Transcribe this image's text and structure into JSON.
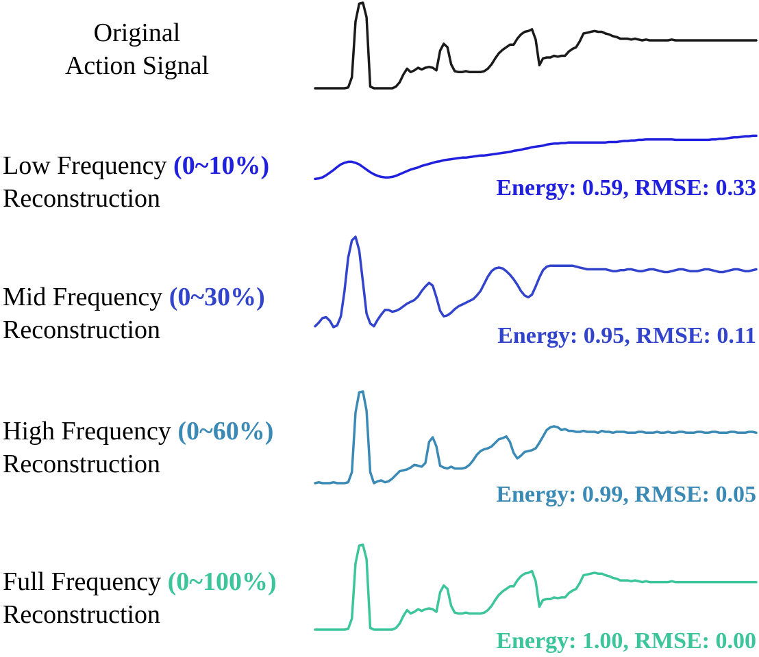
{
  "chart_data": {
    "type": "line",
    "x": [
      0,
      1,
      2,
      3,
      4,
      5,
      6,
      7,
      8,
      9,
      10,
      11,
      12,
      13,
      14,
      15,
      16,
      17,
      18,
      19,
      20,
      21,
      22,
      23,
      24,
      25,
      26,
      27,
      28,
      29,
      30,
      31,
      32,
      33,
      34,
      35,
      36,
      37,
      38,
      39,
      40,
      41,
      42,
      43,
      44,
      45,
      46,
      47,
      48,
      49,
      50,
      51,
      52,
      53,
      54,
      55,
      56,
      57,
      58,
      59,
      60,
      61,
      62,
      63,
      64,
      65,
      66,
      67,
      68,
      69,
      70,
      71,
      72,
      73,
      74,
      75,
      76,
      77,
      78,
      79,
      80,
      81,
      82,
      83,
      84,
      85,
      86,
      87,
      88,
      89,
      90,
      91,
      92,
      93,
      94,
      95,
      96,
      97,
      98,
      99,
      100,
      101,
      102,
      103,
      104,
      105,
      106,
      107,
      108,
      109,
      110,
      111,
      112,
      113,
      114,
      115,
      116,
      117,
      118,
      119,
      120
    ],
    "series": [
      {
        "name": "",
        "color": "#1a1a1a",
        "values": [
          0,
          0,
          0,
          0,
          0,
          0,
          0,
          0,
          0,
          0.01,
          0.13,
          0.78,
          0.99,
          1,
          0.83,
          0.02,
          0,
          0,
          0,
          0,
          0,
          0,
          0.02,
          0.07,
          0.16,
          0.23,
          0.19,
          0.21,
          0.24,
          0.22,
          0.24,
          0.25,
          0.24,
          0.21,
          0.44,
          0.52,
          0.48,
          0.28,
          0.2,
          0.19,
          0.19,
          0.2,
          0.19,
          0.19,
          0.19,
          0.19,
          0.2,
          0.23,
          0.28,
          0.35,
          0.41,
          0.45,
          0.48,
          0.51,
          0.51,
          0.58,
          0.63,
          0.66,
          0.67,
          0.69,
          0.57,
          0.27,
          0.35,
          0.36,
          0.36,
          0.38,
          0.37,
          0.38,
          0.38,
          0.43,
          0.46,
          0.48,
          0.55,
          0.64,
          0.65,
          0.66,
          0.67,
          0.66,
          0.66,
          0.64,
          0.63,
          0.61,
          0.6,
          0.58,
          0.58,
          0.58,
          0.57,
          0.58,
          0.57,
          0.56,
          0.57,
          0.56,
          0.56,
          0.56,
          0.56,
          0.56,
          0.56,
          0.57,
          0.56,
          0.56,
          0.56,
          0.56,
          0.56,
          0.56,
          0.56,
          0.56,
          0.56,
          0.56,
          0.56,
          0.56,
          0.56,
          0.56,
          0.56,
          0.56,
          0.56,
          0.56,
          0.56,
          0.56,
          0.56,
          0.56,
          0.56
        ]
      },
      {
        "name": "Low Frequency (0~10%) Reconstruction",
        "color": "#2020dd",
        "values": [
          0.06,
          0.07,
          0.09,
          0.13,
          0.18,
          0.23,
          0.29,
          0.34,
          0.37,
          0.39,
          0.39,
          0.37,
          0.34,
          0.29,
          0.24,
          0.19,
          0.15,
          0.12,
          0.1,
          0.09,
          0.09,
          0.1,
          0.12,
          0.15,
          0.18,
          0.21,
          0.24,
          0.26,
          0.28,
          0.31,
          0.33,
          0.35,
          0.37,
          0.39,
          0.4,
          0.42,
          0.43,
          0.44,
          0.45,
          0.46,
          0.47,
          0.47,
          0.48,
          0.49,
          0.5,
          0.51,
          0.51,
          0.52,
          0.53,
          0.54,
          0.55,
          0.56,
          0.57,
          0.58,
          0.6,
          0.61,
          0.62,
          0.64,
          0.65,
          0.67,
          0.68,
          0.69,
          0.7,
          0.72,
          0.73,
          0.74,
          0.74,
          0.75,
          0.75,
          0.76,
          0.76,
          0.76,
          0.76,
          0.76,
          0.76,
          0.76,
          0.76,
          0.76,
          0.76,
          0.76,
          0.77,
          0.77,
          0.77,
          0.78,
          0.79,
          0.79,
          0.8,
          0.8,
          0.81,
          0.81,
          0.82,
          0.82,
          0.82,
          0.82,
          0.82,
          0.82,
          0.82,
          0.82,
          0.81,
          0.81,
          0.81,
          0.81,
          0.81,
          0.81,
          0.81,
          0.81,
          0.81,
          0.81,
          0.82,
          0.82,
          0.83,
          0.83,
          0.84,
          0.85,
          0.86,
          0.86,
          0.87,
          0.88,
          0.88,
          0.89,
          0.89
        ]
      },
      {
        "name": "Mid Frequency (0~30%) Reconstruction",
        "color": "#3344cc",
        "values": [
          0.01,
          0.05,
          0.1,
          0.11,
          0.07,
          0,
          0.02,
          0.12,
          0.4,
          0.77,
          0.96,
          1,
          0.85,
          0.5,
          0.15,
          0.04,
          0.01,
          0.08,
          0.14,
          0.19,
          0.19,
          0.17,
          0.18,
          0.2,
          0.23,
          0.26,
          0.28,
          0.3,
          0.34,
          0.4,
          0.45,
          0.49,
          0.46,
          0.33,
          0.18,
          0.12,
          0.13,
          0.16,
          0.2,
          0.23,
          0.25,
          0.27,
          0.29,
          0.31,
          0.35,
          0.4,
          0.48,
          0.56,
          0.62,
          0.65,
          0.66,
          0.65,
          0.62,
          0.58,
          0.53,
          0.47,
          0.4,
          0.35,
          0.33,
          0.36,
          0.45,
          0.55,
          0.63,
          0.67,
          0.68,
          0.68,
          0.68,
          0.68,
          0.68,
          0.68,
          0.68,
          0.67,
          0.66,
          0.65,
          0.64,
          0.64,
          0.64,
          0.64,
          0.64,
          0.64,
          0.63,
          0.62,
          0.62,
          0.63,
          0.63,
          0.64,
          0.64,
          0.63,
          0.62,
          0.62,
          0.63,
          0.64,
          0.64,
          0.63,
          0.62,
          0.61,
          0.61,
          0.62,
          0.63,
          0.64,
          0.64,
          0.63,
          0.62,
          0.62,
          0.62,
          0.63,
          0.64,
          0.64,
          0.63,
          0.62,
          0.61,
          0.61,
          0.62,
          0.63,
          0.64,
          0.64,
          0.63,
          0.62,
          0.62,
          0.63,
          0.64
        ]
      },
      {
        "name": "High Frequency (0~60%) Reconstruction",
        "color": "#3b8ab5",
        "values": [
          0,
          0.01,
          0,
          0,
          0,
          0.01,
          0,
          0,
          0,
          0.01,
          0.12,
          0.77,
          0.99,
          1,
          0.79,
          0.12,
          0,
          0.02,
          0.03,
          0.01,
          0.02,
          0.05,
          0.09,
          0.13,
          0.14,
          0.15,
          0.17,
          0.2,
          0.19,
          0.18,
          0.22,
          0.45,
          0.5,
          0.4,
          0.19,
          0.17,
          0.16,
          0.18,
          0.16,
          0.16,
          0.16,
          0.17,
          0.2,
          0.25,
          0.31,
          0.35,
          0.37,
          0.38,
          0.4,
          0.44,
          0.48,
          0.49,
          0.51,
          0.45,
          0.33,
          0.27,
          0.3,
          0.34,
          0.35,
          0.36,
          0.38,
          0.44,
          0.51,
          0.58,
          0.61,
          0.62,
          0.61,
          0.58,
          0.59,
          0.57,
          0.57,
          0.56,
          0.56,
          0.57,
          0.56,
          0.56,
          0.56,
          0.55,
          0.57,
          0.56,
          0.56,
          0.55,
          0.56,
          0.56,
          0.56,
          0.55,
          0.55,
          0.55,
          0.56,
          0.56,
          0.55,
          0.55,
          0.55,
          0.56,
          0.55,
          0.55,
          0.56,
          0.55,
          0.55,
          0.56,
          0.56,
          0.55,
          0.55,
          0.55,
          0.56,
          0.56,
          0.55,
          0.55,
          0.56,
          0.56,
          0.55,
          0.55,
          0.55,
          0.56,
          0.56,
          0.55,
          0.55,
          0.55,
          0.56,
          0.56,
          0.55
        ]
      },
      {
        "name": "Full Frequency (0~100%) Reconstruction",
        "color": "#3cc59a",
        "values": [
          0,
          0,
          0,
          0,
          0,
          0,
          0,
          0,
          0,
          0.01,
          0.13,
          0.78,
          0.99,
          1,
          0.83,
          0.02,
          0,
          0,
          0,
          0,
          0,
          0,
          0.02,
          0.07,
          0.16,
          0.23,
          0.19,
          0.21,
          0.24,
          0.22,
          0.24,
          0.25,
          0.24,
          0.21,
          0.44,
          0.52,
          0.48,
          0.28,
          0.2,
          0.19,
          0.19,
          0.2,
          0.19,
          0.19,
          0.19,
          0.19,
          0.2,
          0.23,
          0.28,
          0.35,
          0.41,
          0.45,
          0.48,
          0.51,
          0.51,
          0.58,
          0.63,
          0.66,
          0.67,
          0.69,
          0.57,
          0.27,
          0.35,
          0.36,
          0.36,
          0.38,
          0.37,
          0.38,
          0.38,
          0.43,
          0.46,
          0.48,
          0.55,
          0.64,
          0.65,
          0.66,
          0.67,
          0.66,
          0.66,
          0.64,
          0.63,
          0.61,
          0.6,
          0.58,
          0.58,
          0.58,
          0.57,
          0.58,
          0.57,
          0.56,
          0.57,
          0.56,
          0.56,
          0.56,
          0.56,
          0.56,
          0.56,
          0.57,
          0.56,
          0.56,
          0.56,
          0.56,
          0.56,
          0.56,
          0.56,
          0.56,
          0.56,
          0.56,
          0.56,
          0.56,
          0.56,
          0.56,
          0.56,
          0.56,
          0.56,
          0.56,
          0.56,
          0.56,
          0.56,
          0.56,
          0.56
        ]
      }
    ]
  },
  "panels": [
    {
      "label_line1": "Original",
      "label_line2": "Action Signal",
      "pct": "",
      "metric": ""
    },
    {
      "label_line1": "Low Frequency ",
      "pct": "(0~10%)",
      "label_line2": "Reconstruction",
      "metric": "Energy: 0.59, RMSE: 0.33"
    },
    {
      "label_line1": "Mid Frequency ",
      "pct": "(0~30%)",
      "label_line2": "Reconstruction",
      "metric": "Energy: 0.95, RMSE: 0.11"
    },
    {
      "label_line1": "High Frequency ",
      "pct": "(0~60%)",
      "label_line2": "Reconstruction",
      "metric": "Energy: 0.99, RMSE: 0.05"
    },
    {
      "label_line1": "Full Frequency ",
      "pct": "(0~100%)",
      "label_line2": "Reconstruction",
      "metric": "Energy: 1.00, RMSE: 0.00"
    }
  ]
}
